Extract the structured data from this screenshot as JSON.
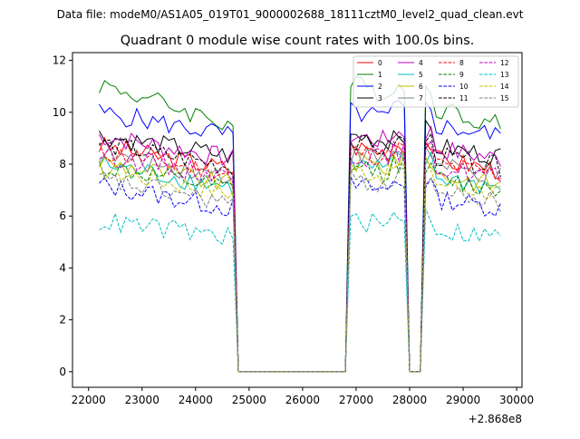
{
  "chart_data": {
    "type": "line",
    "suptitle": "Data file: modeM0/AS1A05_019T01_9000002688_18111cztM0_level2_quad_clean.evt",
    "title": "Quadrant 0 module wise count rates with 100.0s bins.",
    "xlabel": "",
    "ylabel": "",
    "x_offset_label": "+2.868e8",
    "xlim": [
      21700,
      30100
    ],
    "ylim": [
      -0.6,
      12.3
    ],
    "xticks": [
      22000,
      23000,
      24000,
      25000,
      26000,
      27000,
      28000,
      29000,
      30000
    ],
    "xtick_labels": [
      "22000",
      "23000",
      "24000",
      "25000",
      "26000",
      "27000",
      "28000",
      "29000",
      "30000"
    ],
    "yticks": [
      0,
      2,
      4,
      6,
      8,
      10,
      12
    ],
    "ytick_labels": [
      "0",
      "2",
      "4",
      "6",
      "8",
      "10",
      "12"
    ],
    "legend_position": "top-right",
    "gaps": [
      {
        "start": 24800,
        "end": 26800
      },
      {
        "start": 28000,
        "end": 28200
      }
    ],
    "series": [
      {
        "name": "0",
        "color": "#ff0000",
        "dash": "solid",
        "base": 8.7,
        "trend": -0.9
      },
      {
        "name": "1",
        "color": "#008000",
        "dash": "solid",
        "base": 11.1,
        "trend": -1.6
      },
      {
        "name": "2",
        "color": "#0000ff",
        "dash": "solid",
        "base": 10.0,
        "trend": -0.9
      },
      {
        "name": "3",
        "color": "#000000",
        "dash": "solid",
        "base": 9.1,
        "trend": -0.8
      },
      {
        "name": "4",
        "color": "#bf00bf",
        "dash": "solid",
        "base": 9.1,
        "trend": -0.9
      },
      {
        "name": "5",
        "color": "#00bfbf",
        "dash": "solid",
        "base": 8.0,
        "trend": -0.9
      },
      {
        "name": "6",
        "color": "#bfbf00",
        "dash": "solid",
        "base": 8.1,
        "trend": -0.9
      },
      {
        "name": "7",
        "color": "#808080",
        "dash": "solid",
        "base": 8.4,
        "trend": -0.9
      },
      {
        "name": "8",
        "color": "#ff0000",
        "dash": "dashed",
        "base": 8.5,
        "trend": -0.9
      },
      {
        "name": "9",
        "color": "#008000",
        "dash": "dashed",
        "base": 7.9,
        "trend": -0.9
      },
      {
        "name": "10",
        "color": "#0000ff",
        "dash": "dashed",
        "base": 7.2,
        "trend": -0.9
      },
      {
        "name": "11",
        "color": "#000000",
        "dash": "dashed",
        "base": 8.8,
        "trend": -0.9
      },
      {
        "name": "12",
        "color": "#bf00bf",
        "dash": "dashed",
        "base": 8.4,
        "trend": -0.9
      },
      {
        "name": "13",
        "color": "#00bfbf",
        "dash": "dashed",
        "base": 5.8,
        "trend": -0.6
      },
      {
        "name": "14",
        "color": "#bfbf00",
        "dash": "dashed",
        "base": 7.8,
        "trend": -0.9
      },
      {
        "name": "15",
        "color": "#808080",
        "dash": "dashed",
        "base": 7.4,
        "trend": -0.9
      }
    ]
  }
}
